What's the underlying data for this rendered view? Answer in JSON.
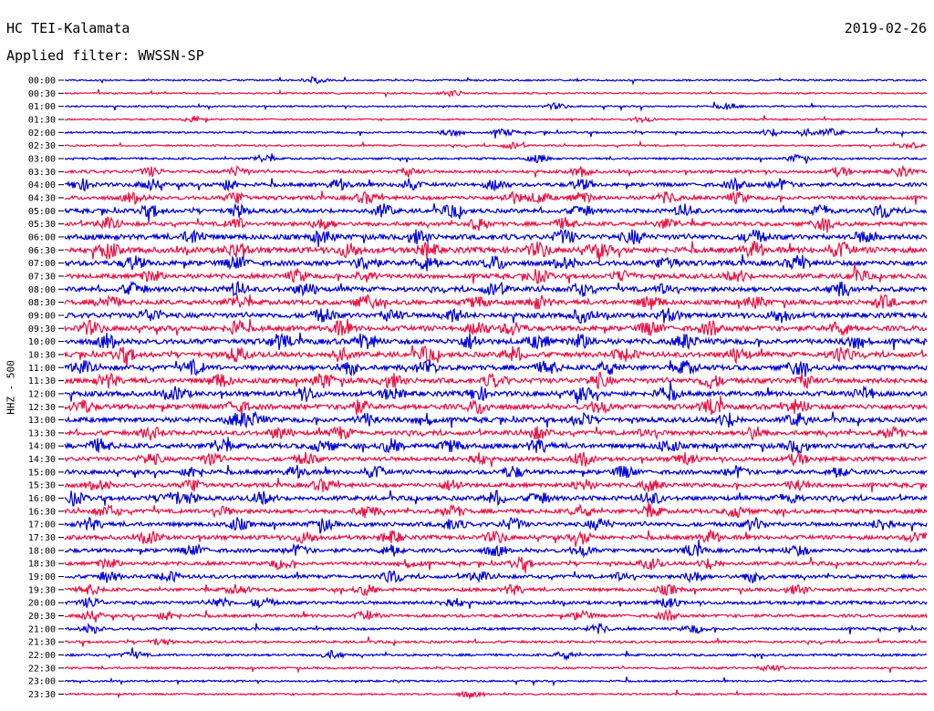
{
  "header": {
    "station": "HC TEI-Kalamata",
    "date": "2019-02-26",
    "filter": "Applied filter: WWSSN-SP"
  },
  "chart_data": {
    "type": "line",
    "title": "HC TEI-Kalamata",
    "subtitle": "Applied filter: WWSSN-SP",
    "ylabel": "HHZ - 500",
    "xlabel": "",
    "colors": [
      "#0000dd",
      "#ee1144"
    ],
    "rows": [
      {
        "time": "00:00",
        "level": 0.08,
        "events": [
          0.29
        ]
      },
      {
        "time": "00:30",
        "level": 0.06,
        "events": [
          0.45
        ]
      },
      {
        "time": "01:00",
        "level": 0.06,
        "events": [
          0.57,
          0.77
        ]
      },
      {
        "time": "01:30",
        "level": 0.07,
        "events": [
          0.15,
          0.67
        ]
      },
      {
        "time": "02:00",
        "level": 0.12,
        "events": [
          0.45,
          0.51,
          0.82,
          0.86,
          0.89
        ]
      },
      {
        "time": "02:30",
        "level": 0.08,
        "events": [
          0.52,
          0.98
        ]
      },
      {
        "time": "03:00",
        "level": 0.14,
        "events": [
          0.23,
          0.55,
          0.85
        ]
      },
      {
        "time": "03:30",
        "level": 0.3,
        "events": [
          0.1,
          0.2,
          0.4,
          0.6,
          0.9,
          0.97
        ]
      },
      {
        "time": "04:00",
        "level": 0.42,
        "events": [
          0.02,
          0.1,
          0.19,
          0.32,
          0.4,
          0.5,
          0.6,
          0.78,
          0.83
        ]
      },
      {
        "time": "04:30",
        "level": 0.45,
        "events": [
          0.08,
          0.2,
          0.35,
          0.52,
          0.55,
          0.6,
          0.7,
          0.78
        ]
      },
      {
        "time": "05:00",
        "level": 0.5,
        "events": [
          0.1,
          0.2,
          0.37,
          0.45,
          0.6,
          0.72,
          0.88,
          0.95
        ]
      },
      {
        "time": "05:30",
        "level": 0.45,
        "events": [
          0.05,
          0.2,
          0.3,
          0.48,
          0.58,
          0.7,
          0.88
        ]
      },
      {
        "time": "06:00",
        "level": 0.65,
        "events": [
          0.15,
          0.3,
          0.41,
          0.58,
          0.66,
          0.8,
          0.93
        ]
      },
      {
        "time": "06:30",
        "level": 0.75,
        "events": [
          0.05,
          0.2,
          0.33,
          0.42,
          0.55,
          0.62,
          0.8,
          0.9
        ]
      },
      {
        "time": "07:00",
        "level": 0.65,
        "events": [
          0.08,
          0.2,
          0.35,
          0.42,
          0.5,
          0.58,
          0.7,
          0.85
        ]
      },
      {
        "time": "07:30",
        "level": 0.55,
        "events": [
          0.1,
          0.27,
          0.35,
          0.55,
          0.65,
          0.78,
          0.92
        ]
      },
      {
        "time": "08:00",
        "level": 0.6,
        "events": [
          0.08,
          0.2,
          0.28,
          0.5,
          0.6,
          0.7,
          0.9
        ]
      },
      {
        "time": "08:30",
        "level": 0.6,
        "events": [
          0.05,
          0.2,
          0.35,
          0.48,
          0.55,
          0.68,
          0.8,
          0.95
        ]
      },
      {
        "time": "09:00",
        "level": 0.62,
        "events": [
          0.1,
          0.3,
          0.38,
          0.45,
          0.6,
          0.7,
          0.83
        ]
      },
      {
        "time": "09:30",
        "level": 0.65,
        "events": [
          0.03,
          0.2,
          0.32,
          0.48,
          0.52,
          0.68,
          0.75,
          0.9
        ]
      },
      {
        "time": "10:00",
        "level": 0.7,
        "events": [
          0.05,
          0.25,
          0.35,
          0.47,
          0.55,
          0.6,
          0.72,
          0.92
        ]
      },
      {
        "time": "10:30",
        "level": 0.65,
        "events": [
          0.07,
          0.2,
          0.32,
          0.42,
          0.52,
          0.65,
          0.78,
          0.9
        ]
      },
      {
        "time": "11:00",
        "level": 0.62,
        "events": [
          0.02,
          0.15,
          0.33,
          0.42,
          0.56,
          0.63,
          0.72,
          0.85
        ]
      },
      {
        "time": "11:30",
        "level": 0.65,
        "events": [
          0.05,
          0.18,
          0.3,
          0.38,
          0.5,
          0.62,
          0.75,
          0.86
        ]
      },
      {
        "time": "12:00",
        "level": 0.62,
        "events": [
          0.13,
          0.28,
          0.38,
          0.48,
          0.6,
          0.7,
          0.93
        ]
      },
      {
        "time": "12:30",
        "level": 0.65,
        "events": [
          0.02,
          0.2,
          0.34,
          0.48,
          0.62,
          0.75,
          0.85
        ]
      },
      {
        "time": "13:00",
        "level": 0.6,
        "events": [
          0.2,
          0.22,
          0.35,
          0.42,
          0.6,
          0.77,
          0.85
        ]
      },
      {
        "time": "13:30",
        "level": 0.55,
        "events": [
          0.1,
          0.25,
          0.32,
          0.55,
          0.68,
          0.8,
          0.96
        ]
      },
      {
        "time": "14:00",
        "level": 0.6,
        "events": [
          0.04,
          0.18,
          0.3,
          0.38,
          0.45,
          0.55,
          0.7,
          0.85
        ]
      },
      {
        "time": "14:30",
        "level": 0.5,
        "events": [
          0.1,
          0.17,
          0.28,
          0.48,
          0.6,
          0.72,
          0.85
        ]
      },
      {
        "time": "15:00",
        "level": 0.5,
        "events": [
          0.15,
          0.27,
          0.36,
          0.52,
          0.65,
          0.78,
          0.9
        ]
      },
      {
        "time": "15:30",
        "level": 0.5,
        "events": [
          0.04,
          0.15,
          0.3,
          0.45,
          0.6,
          0.68,
          0.85
        ]
      },
      {
        "time": "16:00",
        "level": 0.55,
        "events": [
          0.01,
          0.12,
          0.14,
          0.23,
          0.5,
          0.55,
          0.68,
          0.84
        ]
      },
      {
        "time": "16:30",
        "level": 0.5,
        "events": [
          0.05,
          0.18,
          0.35,
          0.45,
          0.6,
          0.68,
          0.78
        ]
      },
      {
        "time": "17:00",
        "level": 0.5,
        "events": [
          0.03,
          0.2,
          0.3,
          0.45,
          0.52,
          0.62,
          0.8,
          0.95
        ]
      },
      {
        "time": "17:30",
        "level": 0.5,
        "events": [
          0.1,
          0.28,
          0.38,
          0.5,
          0.6,
          0.75,
          0.99
        ]
      },
      {
        "time": "18:00",
        "level": 0.45,
        "events": [
          0.15,
          0.27,
          0.38,
          0.5,
          0.6,
          0.73,
          0.85
        ]
      },
      {
        "time": "18:30",
        "level": 0.4,
        "events": [
          0.05,
          0.25,
          0.4,
          0.53,
          0.68,
          0.75
        ]
      },
      {
        "time": "19:00",
        "level": 0.4,
        "events": [
          0.05,
          0.12,
          0.38,
          0.48,
          0.65,
          0.73,
          0.8
        ]
      },
      {
        "time": "19:30",
        "level": 0.35,
        "events": [
          0.03,
          0.2,
          0.35,
          0.52,
          0.7,
          0.85
        ]
      },
      {
        "time": "20:00",
        "level": 0.35,
        "events": [
          0.03,
          0.18,
          0.23,
          0.45,
          0.7
        ]
      },
      {
        "time": "20:30",
        "level": 0.3,
        "events": [
          0.03,
          0.12,
          0.35,
          0.6,
          0.7
        ]
      },
      {
        "time": "21:00",
        "level": 0.25,
        "events": [
          0.03,
          0.62,
          0.73
        ]
      },
      {
        "time": "21:30",
        "level": 0.2,
        "events": [
          0.11
        ]
      },
      {
        "time": "22:00",
        "level": 0.18,
        "events": [
          0.08,
          0.31,
          0.58
        ]
      },
      {
        "time": "22:30",
        "level": 0.15,
        "events": [
          0.82
        ]
      },
      {
        "time": "23:00",
        "level": 0.1,
        "events": []
      },
      {
        "time": "23:30",
        "level": 0.1,
        "events": [
          0.47
        ]
      }
    ]
  }
}
